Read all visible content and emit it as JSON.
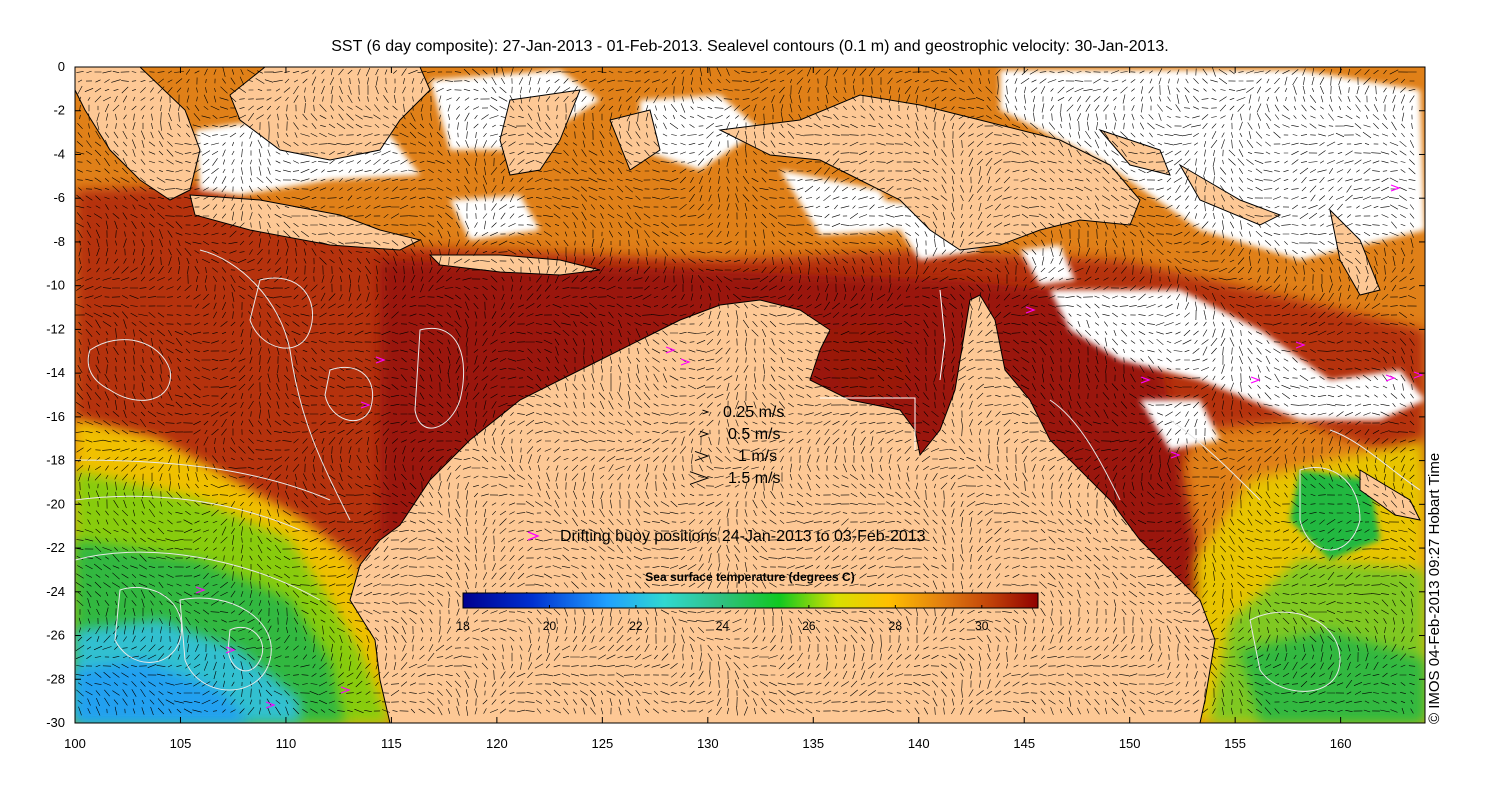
{
  "title": "SST (6 day composite): 27-Jan-2013 - 01-Feb-2013. Sealevel contours (0.1 m) and geostrophic velocity: 30-Jan-2013.",
  "credit": "© IMOS 04-Feb-2013 09:27 Hobart Time",
  "axes": {
    "x_ticks": [
      "100",
      "105",
      "110",
      "115",
      "120",
      "125",
      "130",
      "135",
      "140",
      "145",
      "150",
      "155",
      "160"
    ],
    "y_ticks": [
      "0",
      "-2",
      "-4",
      "-6",
      "-8",
      "-10",
      "-12",
      "-14",
      "-16",
      "-18",
      "-20",
      "-22",
      "-24",
      "-26",
      "-28",
      "-30"
    ],
    "lon_range": [
      100,
      164
    ],
    "lat_range": [
      -30,
      0
    ]
  },
  "velocity_legend": [
    {
      "label": "0.25 m/s",
      "speed": 0.25
    },
    {
      "label": "0.5 m/s",
      "speed": 0.5
    },
    {
      "label": "1 m/s",
      "speed": 1
    },
    {
      "label": "1.5 m/s",
      "speed": 1.5
    }
  ],
  "buoy_legend": {
    "label": "Drifting buoy positions 24-Jan-2013 to 03-Feb-2013",
    "color": "#ff00ff"
  },
  "colorbar": {
    "title": "Sea surface temperature (degrees C)",
    "ticks": [
      "18",
      "20",
      "22",
      "24",
      "26",
      "28",
      "30"
    ],
    "range": [
      18,
      31.3
    ]
  },
  "colors": {
    "land": "#fdc895",
    "cloud": "#ffffff",
    "contour": "#e8e8e8",
    "coast": "#000000"
  }
}
